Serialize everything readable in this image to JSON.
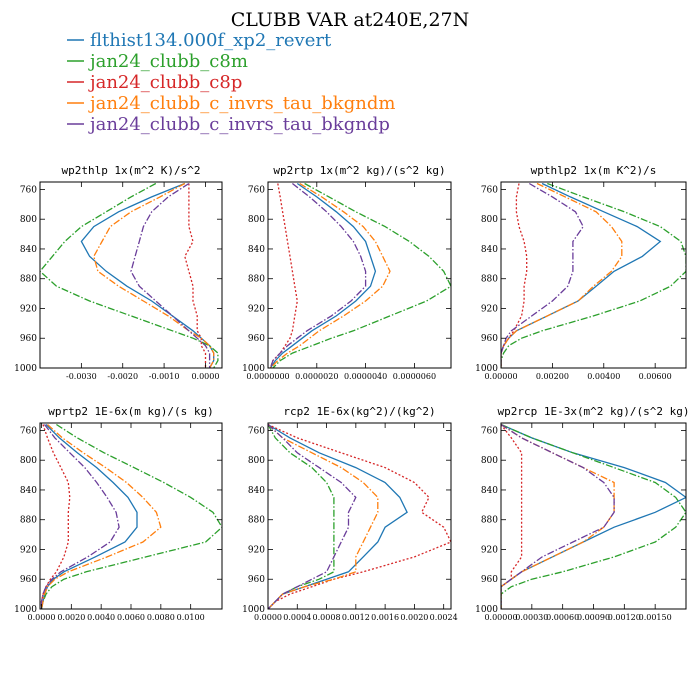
{
  "figure_title": "CLUBB VAR at240E,27N",
  "legend": [
    {
      "label": "flthist134.000f_xp2_revert",
      "color": "#1f77b4",
      "dash": "solid"
    },
    {
      "label": "jan24_clubb_c8m",
      "color": "#2ca02c",
      "dash": "dashdot"
    },
    {
      "label": "jan24_clubb_c8p",
      "color": "#d62728",
      "dash": "dot"
    },
    {
      "label": "jan24_clubb_c_invrs_tau_bkgndm",
      "color": "#ff7f0e",
      "dash": "dashdot"
    },
    {
      "label": "jan24_clubb_c_invrs_tau_bkgndp",
      "color": "#6a3d9a",
      "dash": "dashdot"
    }
  ],
  "chart_data": [
    {
      "type": "line",
      "title": "wp2thlp  1x(m^2 K)/s^2",
      "xlim": [
        -0.004,
        0.0004
      ],
      "ylim": [
        1000,
        750
      ],
      "xticks": [
        -0.003,
        -0.002,
        -0.001,
        0.0
      ],
      "xticklabels": [
        "-0.0030",
        "-0.0020",
        "-0.0010",
        "0.0000"
      ],
      "yticks": [
        760,
        800,
        840,
        880,
        920,
        960,
        1000
      ],
      "yticklabels": [
        "760",
        "800",
        "840",
        "880",
        "920",
        "960",
        "1000"
      ],
      "y": [
        752,
        770,
        790,
        810,
        830,
        850,
        870,
        890,
        910,
        930,
        950,
        960,
        970,
        980,
        990,
        1000
      ],
      "series": [
        {
          "name": "flthist134.000f_xp2_revert",
          "values": [
            -0.0005,
            -0.0013,
            -0.0021,
            -0.0027,
            -0.003,
            -0.0028,
            -0.0024,
            -0.0019,
            -0.0013,
            -0.0008,
            -0.0003,
            -0.0001,
            0.0001,
            0.0002,
            0.0002,
            0.0001
          ]
        },
        {
          "name": "jan24_clubb_c8m",
          "values": [
            -0.0012,
            -0.0018,
            -0.0024,
            -0.003,
            -0.0034,
            -0.0037,
            -0.004,
            -0.0036,
            -0.0028,
            -0.0018,
            -0.0008,
            -0.0003,
            0.0001,
            0.0003,
            0.0003,
            0.0002
          ]
        },
        {
          "name": "jan24_clubb_c8p",
          "values": [
            -0.0004,
            -0.0004,
            -0.0004,
            -0.0004,
            -0.0003,
            -0.0005,
            -0.0004,
            -0.0003,
            -0.0003,
            -0.0002,
            -0.0002,
            -0.0001,
            -0.0001,
            0.0,
            0.0,
            0.0
          ]
        },
        {
          "name": "jan24_clubb_c_invrs_tau_bkgndm",
          "values": [
            -0.0005,
            -0.0011,
            -0.0018,
            -0.0023,
            -0.0025,
            -0.0027,
            -0.0026,
            -0.0021,
            -0.0015,
            -0.0009,
            -0.0004,
            -0.0001,
            0.0001,
            0.0002,
            0.0002,
            0.0001
          ]
        },
        {
          "name": "jan24_clubb_c_invrs_tau_bkgndp",
          "values": [
            -0.0004,
            -0.0009,
            -0.0013,
            -0.0015,
            -0.0016,
            -0.0017,
            -0.0018,
            -0.0016,
            -0.0012,
            -0.0008,
            -0.0004,
            -0.0002,
            0.0,
            0.0001,
            0.0001,
            0.0001
          ]
        }
      ]
    },
    {
      "type": "line",
      "title": "wp2rtp  1x(m^2 kg)/(s^2 kg)",
      "xlim": [
        0.0,
        7.5e-06
      ],
      "ylim": [
        1000,
        750
      ],
      "xticks": [
        0.0,
        2e-06,
        4e-06,
        6e-06
      ],
      "xticklabels": [
        "0.0000000",
        "0.0000020",
        "0.0000040",
        "0.0000060"
      ],
      "yticks": [
        760,
        800,
        840,
        880,
        920,
        960,
        1000
      ],
      "yticklabels": [
        "760",
        "800",
        "840",
        "880",
        "920",
        "960",
        "1000"
      ],
      "y": [
        752,
        770,
        790,
        810,
        830,
        850,
        870,
        890,
        910,
        930,
        950,
        960,
        970,
        980,
        990,
        1000
      ],
      "series": [
        {
          "name": "flthist134.000f_xp2_revert",
          "values": [
            1.2e-06,
            2e-06,
            2.8e-06,
            3.5e-06,
            4e-06,
            4.2e-06,
            4.4e-06,
            4.2e-06,
            3.6e-06,
            2.8e-06,
            1.8e-06,
            1.4e-06,
            1e-06,
            6e-07,
            3e-07,
            1e-07
          ]
        },
        {
          "name": "jan24_clubb_c8m",
          "values": [
            1.5e-06,
            2.5e-06,
            3.6e-06,
            4.8e-06,
            5.8e-06,
            6.6e-06,
            7.2e-06,
            7.5e-06,
            6.5e-06,
            5e-06,
            3.5e-06,
            2.6e-06,
            1.8e-06,
            1e-06,
            5e-07,
            2e-07
          ]
        },
        {
          "name": "jan24_clubb_c8p",
          "values": [
            4e-07,
            5e-07,
            6e-07,
            7e-07,
            8e-07,
            9e-07,
            1e-06,
            1.1e-06,
            1.2e-06,
            1.1e-06,
            1e-06,
            9e-07,
            7e-07,
            5e-07,
            2e-07,
            1e-07
          ]
        },
        {
          "name": "jan24_clubb_c_invrs_tau_bkgndm",
          "values": [
            1.3e-06,
            2.2e-06,
            3.1e-06,
            3.9e-06,
            4.4e-06,
            4.7e-06,
            5e-06,
            4.7e-06,
            4e-06,
            3.1e-06,
            2.1e-06,
            1.7e-06,
            1.3e-06,
            8e-07,
            4e-07,
            1e-07
          ]
        },
        {
          "name": "jan24_clubb_c_invrs_tau_bkgndp",
          "values": [
            1e-06,
            1.7e-06,
            2.4e-06,
            3e-06,
            3.5e-06,
            3.8e-06,
            4e-06,
            4e-06,
            3.4e-06,
            2.6e-06,
            1.6e-06,
            1.2e-06,
            8e-07,
            5e-07,
            2e-07,
            1e-07
          ]
        }
      ]
    },
    {
      "type": "line",
      "title": "wpthlp2  1x(m K^2)/s",
      "xlim": [
        0.0,
        0.0072
      ],
      "ylim": [
        1000,
        750
      ],
      "xticks": [
        0.0,
        0.002,
        0.004,
        0.006
      ],
      "xticklabels": [
        "0.00000",
        "0.00200",
        "0.00400",
        "0.00600"
      ],
      "yticks": [
        760,
        800,
        840,
        880,
        920,
        960,
        1000
      ],
      "yticklabels": [
        "760",
        "800",
        "840",
        "880",
        "920",
        "960",
        "1000"
      ],
      "y": [
        752,
        770,
        790,
        810,
        830,
        850,
        870,
        890,
        910,
        930,
        950,
        960,
        970,
        980,
        990,
        1000
      ],
      "series": [
        {
          "name": "flthist134.000f_xp2_revert",
          "values": [
            0.0016,
            0.0027,
            0.004,
            0.0053,
            0.0062,
            0.0055,
            0.0044,
            0.0037,
            0.003,
            0.0018,
            0.0006,
            0.0003,
            0.0001,
            0.0,
            0.0,
            0.0
          ]
        },
        {
          "name": "jan24_clubb_c8m",
          "values": [
            0.0018,
            0.0032,
            0.0048,
            0.0062,
            0.007,
            0.0072,
            0.0072,
            0.0066,
            0.0054,
            0.0036,
            0.0016,
            0.0008,
            0.0003,
            0.0001,
            0.0,
            0.0
          ]
        },
        {
          "name": "jan24_clubb_c8p",
          "values": [
            0.0007,
            0.0006,
            0.0006,
            0.0007,
            0.0009,
            0.001,
            0.001,
            0.0009,
            0.0009,
            0.0008,
            0.0005,
            0.0003,
            0.0001,
            0.0,
            0.0,
            0.0
          ]
        },
        {
          "name": "jan24_clubb_c_invrs_tau_bkgndm",
          "values": [
            0.0014,
            0.0025,
            0.0037,
            0.0043,
            0.0047,
            0.0047,
            0.0043,
            0.0036,
            0.003,
            0.0018,
            0.0006,
            0.0003,
            0.0001,
            0.0,
            0.0,
            0.0
          ]
        },
        {
          "name": "jan24_clubb_c_invrs_tau_bkgndp",
          "values": [
            0.0011,
            0.002,
            0.0029,
            0.0032,
            0.0028,
            0.0028,
            0.0028,
            0.0026,
            0.002,
            0.0012,
            0.0004,
            0.0002,
            0.0001,
            0.0,
            0.0,
            0.0
          ]
        }
      ]
    },
    {
      "type": "line",
      "title": "wprtp2  1E-6x(m kg)/(s kg)",
      "xlim": [
        -0.0001,
        0.0121
      ],
      "ylim": [
        1000,
        750
      ],
      "xticks": [
        0.0,
        0.002,
        0.004,
        0.006,
        0.008,
        0.01
      ],
      "xticklabels": [
        "0.0000",
        "0.0020",
        "0.0040",
        "0.0060",
        "0.0080",
        "0.0100"
      ],
      "yticks": [
        760,
        800,
        840,
        880,
        920,
        960,
        1000
      ],
      "yticklabels": [
        "760",
        "800",
        "840",
        "880",
        "920",
        "960",
        "1000"
      ],
      "y": [
        752,
        770,
        790,
        810,
        830,
        850,
        870,
        890,
        910,
        930,
        950,
        960,
        970,
        980,
        990,
        1000
      ],
      "series": [
        {
          "name": "flthist134.000f_xp2_revert",
          "values": [
            0.0003,
            0.0012,
            0.0024,
            0.0037,
            0.0048,
            0.0058,
            0.0064,
            0.0064,
            0.0056,
            0.0036,
            0.0015,
            0.0008,
            0.0004,
            0.0002,
            0.0001,
            0.0
          ]
        },
        {
          "name": "jan24_clubb_c8m",
          "values": [
            0.001,
            0.0024,
            0.0042,
            0.0062,
            0.0082,
            0.01,
            0.0115,
            0.0121,
            0.011,
            0.007,
            0.003,
            0.0015,
            0.0007,
            0.0003,
            0.0001,
            0.0
          ]
        },
        {
          "name": "jan24_clubb_c8p",
          "values": [
            0.0001,
            0.0004,
            0.0008,
            0.0013,
            0.0018,
            0.0019,
            0.0018,
            0.0018,
            0.0018,
            0.0015,
            0.001,
            0.0006,
            0.0003,
            0.0001,
            0.0,
            0.0
          ]
        },
        {
          "name": "jan24_clubb_c_invrs_tau_bkgndm",
          "values": [
            0.0004,
            0.0014,
            0.0028,
            0.0043,
            0.0057,
            0.0068,
            0.0077,
            0.008,
            0.0068,
            0.0044,
            0.0018,
            0.0009,
            0.0004,
            0.0002,
            0.0001,
            0.0
          ]
        },
        {
          "name": "jan24_clubb_c_invrs_tau_bkgndp",
          "values": [
            0.0002,
            0.0009,
            0.0019,
            0.0029,
            0.0037,
            0.0044,
            0.005,
            0.0052,
            0.0046,
            0.0031,
            0.0013,
            0.0007,
            0.0003,
            0.0001,
            0.0,
            0.0
          ]
        }
      ]
    },
    {
      "type": "line",
      "title": "rcp2  1E-6x(kg^2)/(kg^2)",
      "xlim": [
        0.0,
        0.0025
      ],
      "ylim": [
        1000,
        750
      ],
      "xticks": [
        0.0,
        0.0004,
        0.0008,
        0.0012,
        0.0016,
        0.002,
        0.0024
      ],
      "xticklabels": [
        "0.0000",
        "0.0004",
        "0.0008",
        "0.0012",
        "0.0016",
        "0.0020",
        "0.0024"
      ],
      "yticks": [
        760,
        800,
        840,
        880,
        920,
        960,
        1000
      ],
      "yticklabels": [
        "760",
        "800",
        "840",
        "880",
        "920",
        "960",
        "1000"
      ],
      "y": [
        752,
        770,
        790,
        810,
        830,
        850,
        870,
        890,
        910,
        930,
        950,
        960,
        970,
        980,
        990,
        1000
      ],
      "series": [
        {
          "name": "flthist134.000f_xp2_revert",
          "values": [
            0.0,
            0.0003,
            0.0007,
            0.0012,
            0.0016,
            0.0018,
            0.0019,
            0.0016,
            0.0015,
            0.0013,
            0.0011,
            0.0008,
            0.0005,
            0.0002,
            0.0001,
            0.0
          ]
        },
        {
          "name": "jan24_clubb_c8m",
          "values": [
            0.0,
            0.0001,
            0.0003,
            0.0006,
            0.0008,
            0.0009,
            0.0009,
            0.0009,
            0.0009,
            0.0009,
            0.0009,
            0.0007,
            0.0004,
            0.0002,
            0.0001,
            0.0
          ]
        },
        {
          "name": "jan24_clubb_c8p",
          "values": [
            0.0,
            0.0004,
            0.001,
            0.0016,
            0.002,
            0.0022,
            0.0021,
            0.0024,
            0.0025,
            0.002,
            0.0013,
            0.0009,
            0.0006,
            0.0003,
            0.0001,
            0.0
          ]
        },
        {
          "name": "jan24_clubb_c_invrs_tau_bkgndm",
          "values": [
            0.0,
            0.0002,
            0.0006,
            0.001,
            0.0013,
            0.0015,
            0.0015,
            0.0014,
            0.0013,
            0.0012,
            0.0012,
            0.0009,
            0.0005,
            0.0002,
            0.0001,
            0.0
          ]
        },
        {
          "name": "jan24_clubb_c_invrs_tau_bkgndp",
          "values": [
            0.0,
            0.0002,
            0.0004,
            0.0007,
            0.001,
            0.0012,
            0.0011,
            0.0011,
            0.001,
            0.0009,
            0.0008,
            0.0006,
            0.0004,
            0.0002,
            0.0001,
            0.0
          ]
        }
      ]
    },
    {
      "type": "line",
      "title": "wp2rcp  1E-3x(m^2 kg)/(s^2 kg)",
      "xlim": [
        0.0,
        0.0018
      ],
      "ylim": [
        1000,
        750
      ],
      "xticks": [
        0.0,
        0.0003,
        0.0006,
        0.0009,
        0.0012,
        0.0015
      ],
      "xticklabels": [
        "0.00000",
        "0.00030",
        "0.00060",
        "0.00090",
        "0.00120",
        "0.00150"
      ],
      "yticks": [
        760,
        800,
        840,
        880,
        920,
        960,
        1000
      ],
      "yticklabels": [
        "760",
        "800",
        "840",
        "880",
        "920",
        "960",
        "1000"
      ],
      "y": [
        752,
        770,
        790,
        810,
        830,
        850,
        870,
        890,
        910,
        930,
        950,
        960,
        970,
        980,
        990,
        1000
      ],
      "series": [
        {
          "name": "flthist134.000f_xp2_revert",
          "values": [
            0.0,
            0.0003,
            0.0007,
            0.0012,
            0.0016,
            0.0018,
            0.0015,
            0.0011,
            0.0008,
            0.0005,
            0.0002,
            0.0001,
            0.0,
            0.0,
            0.0,
            0.0
          ]
        },
        {
          "name": "jan24_clubb_c8m",
          "values": [
            0.0,
            0.0003,
            0.0007,
            0.0011,
            0.0015,
            0.0017,
            0.0018,
            0.0017,
            0.0015,
            0.0011,
            0.0006,
            0.0003,
            0.0001,
            0.0,
            0.0,
            0.0
          ]
        },
        {
          "name": "jan24_clubb_c8p",
          "values": [
            0.0,
            0.0001,
            0.0002,
            0.0002,
            0.0002,
            0.0002,
            0.0002,
            0.0002,
            0.0002,
            0.0002,
            0.0001,
            0.0001,
            0.0,
            0.0,
            0.0,
            0.0
          ]
        },
        {
          "name": "jan24_clubb_c_invrs_tau_bkgndm",
          "values": [
            0.0,
            0.0002,
            0.0005,
            0.0008,
            0.0011,
            0.0011,
            0.0011,
            0.001,
            0.0008,
            0.0005,
            0.0002,
            0.0001,
            0.0,
            0.0,
            0.0,
            0.0
          ]
        },
        {
          "name": "jan24_clubb_c_invrs_tau_bkgndp",
          "values": [
            0.0,
            0.0002,
            0.0005,
            0.0008,
            0.001,
            0.0011,
            0.0011,
            0.001,
            0.0007,
            0.0004,
            0.0002,
            0.0001,
            0.0,
            0.0,
            0.0,
            0.0
          ]
        }
      ]
    }
  ]
}
